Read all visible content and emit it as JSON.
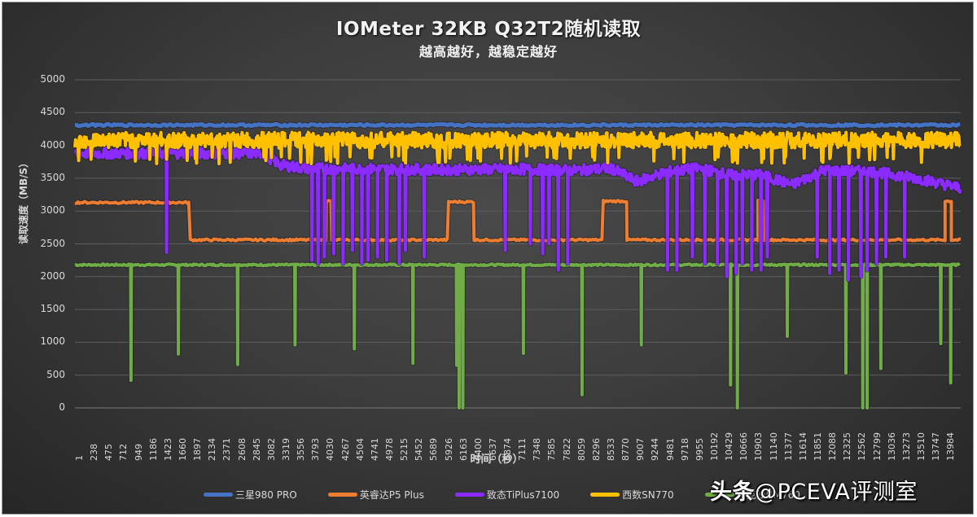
{
  "chart_data": {
    "type": "line",
    "title": "IOMeter 32KB Q32T2随机读取",
    "subtitle": "越高越好，越稳定越好",
    "xlabel": "时间（秒）",
    "ylabel": "读取速度（MB/S）",
    "ylim": [
      0,
      5000
    ],
    "yticks": [
      "5000",
      "4500",
      "4000",
      "3500",
      "3000",
      "2500",
      "2000",
      "1500",
      "1000",
      "500",
      "0"
    ],
    "xlim": [
      1,
      14200
    ],
    "xticks": [
      "1",
      "238",
      "475",
      "712",
      "949",
      "1186",
      "1423",
      "1660",
      "1897",
      "2134",
      "2371",
      "2608",
      "2845",
      "3082",
      "3319",
      "3556",
      "3793",
      "4030",
      "4267",
      "4504",
      "4741",
      "4978",
      "5215",
      "5452",
      "5689",
      "5926",
      "6163",
      "6400",
      "6637",
      "6874",
      "7111",
      "7348",
      "7585",
      "7822",
      "8059",
      "8296",
      "8533",
      "8770",
      "9007",
      "9244",
      "9481",
      "9718",
      "9955",
      "10192",
      "10429",
      "10666",
      "10903",
      "11140",
      "11377",
      "11614",
      "11851",
      "12088",
      "12325",
      "12562",
      "12799",
      "13036",
      "13273",
      "13510",
      "13747",
      "13984"
    ],
    "grid": true,
    "legend_position": "bottom",
    "series": [
      {
        "name": "三星980 PRO",
        "color": "#4472C4",
        "baseline": 4310,
        "band": 30,
        "description": "flat ~4300 MB/s entire run"
      },
      {
        "name": "英睿达P5 Plus",
        "color": "#ED7D31",
        "description": "~3130 until t≈1897, then ~2560 with periodic plateaus back to ~3150",
        "segments": [
          [
            1,
            1850,
            3130
          ],
          [
            1850,
            4030,
            2560
          ],
          [
            4030,
            4120,
            3150
          ],
          [
            4120,
            5990,
            2560
          ],
          [
            5990,
            6400,
            3140
          ],
          [
            6400,
            8470,
            2560
          ],
          [
            8470,
            8850,
            3150
          ],
          [
            8850,
            10950,
            2560
          ],
          [
            10950,
            11050,
            3150
          ],
          [
            11050,
            13950,
            2560
          ],
          [
            13950,
            14050,
            3150
          ],
          [
            14050,
            14200,
            2560
          ]
        ]
      },
      {
        "name": "致态TiPlus7100",
        "color": "#8B2BFF",
        "description": "~3900 early, declining to ~3650→3400 with many deep dips down to ~2000-2300",
        "points": [
          [
            1,
            3880
          ],
          [
            3000,
            3880
          ],
          [
            3300,
            3700
          ],
          [
            3700,
            3650
          ],
          [
            6000,
            3630
          ],
          [
            7000,
            3640
          ],
          [
            8000,
            3620
          ],
          [
            8600,
            3650
          ],
          [
            9000,
            3450
          ],
          [
            9500,
            3600
          ],
          [
            10000,
            3650
          ],
          [
            10500,
            3550
          ],
          [
            11000,
            3550
          ],
          [
            11500,
            3400
          ],
          [
            12000,
            3620
          ],
          [
            12800,
            3600
          ],
          [
            13500,
            3500
          ],
          [
            14200,
            3350
          ]
        ],
        "dips": [
          [
            1470,
            2370
          ],
          [
            3800,
            2250
          ],
          [
            3900,
            2200
          ],
          [
            4000,
            2300
          ],
          [
            4150,
            2350
          ],
          [
            4300,
            2200
          ],
          [
            4450,
            2400
          ],
          [
            4600,
            2200
          ],
          [
            4700,
            2250
          ],
          [
            4850,
            2300
          ],
          [
            5000,
            2250
          ],
          [
            5200,
            2200
          ],
          [
            5300,
            2400
          ],
          [
            5600,
            2300
          ],
          [
            6900,
            2400
          ],
          [
            7300,
            2500
          ],
          [
            7500,
            2350
          ],
          [
            7600,
            2500
          ],
          [
            7750,
            2100
          ],
          [
            7900,
            2200
          ],
          [
            9500,
            2100
          ],
          [
            9650,
            2100
          ],
          [
            9900,
            2300
          ],
          [
            10100,
            2200
          ],
          [
            10300,
            2200
          ],
          [
            10450,
            2000
          ],
          [
            10600,
            2050
          ],
          [
            10700,
            2200
          ],
          [
            10850,
            2100
          ],
          [
            11000,
            2100
          ],
          [
            11100,
            2300
          ],
          [
            11900,
            2300
          ],
          [
            12100,
            2050
          ],
          [
            12250,
            2100
          ],
          [
            12400,
            1950
          ],
          [
            12600,
            2000
          ],
          [
            12700,
            2100
          ],
          [
            12850,
            2200
          ],
          [
            13000,
            2300
          ],
          [
            13300,
            2300
          ]
        ]
      },
      {
        "name": "西数SN770",
        "color": "#FFC000",
        "baseline": 4080,
        "band": 120,
        "description": "~4000-4200 band with frequent dips to ~3750"
      },
      {
        "name": "雷克沙NM760",
        "color": "#70AD47",
        "baseline": 2180,
        "description": "flat ~2180 with periodic dips",
        "dips": [
          [
            900,
            420
          ],
          [
            1660,
            820
          ],
          [
            2610,
            660
          ],
          [
            3530,
            960
          ],
          [
            4480,
            900
          ],
          [
            5420,
            680
          ],
          [
            6120,
            650
          ],
          [
            6160,
            0
          ],
          [
            6220,
            0
          ],
          [
            7190,
            830
          ],
          [
            8130,
            200
          ],
          [
            9080,
            960
          ],
          [
            10510,
            350
          ],
          [
            10620,
            0
          ],
          [
            11420,
            1090
          ],
          [
            12360,
            530
          ],
          [
            12630,
            0
          ],
          [
            12700,
            0
          ],
          [
            12920,
            600
          ],
          [
            13880,
            980
          ],
          [
            14040,
            380
          ]
        ]
      }
    ]
  },
  "legend": {
    "items": [
      {
        "label": "三星980 PRO",
        "color": "#4472C4"
      },
      {
        "label": "英睿达P5 Plus",
        "color": "#ED7D31"
      },
      {
        "label": "致态TiPlus7100",
        "color": "#8B2BFF"
      },
      {
        "label": "西数SN770",
        "color": "#FFC000"
      },
      {
        "label": "雷克沙NM760",
        "color": "#70AD47"
      }
    ]
  },
  "watermark": {
    "prefix": "头条",
    "text": "@PCEVA评测室"
  }
}
